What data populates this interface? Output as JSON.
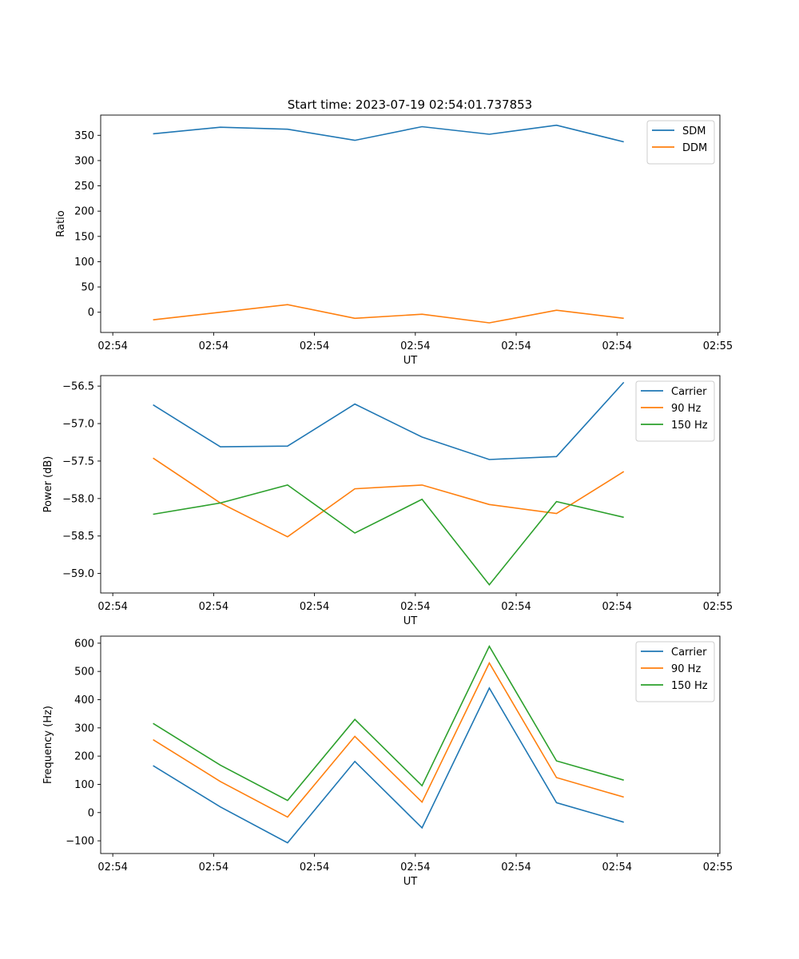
{
  "figure_title": "Start time: 2023-07-19 02:54:01.737853",
  "chart_data": [
    {
      "type": "line",
      "title": "Start time: 2023-07-19 02:54:01.737853",
      "xlabel": "UT",
      "ylabel": "Ratio",
      "x": [
        1,
        2,
        3,
        4,
        5,
        6,
        7,
        8
      ],
      "xlim": [
        0.22,
        9.43
      ],
      "xticks": [
        0.4,
        1.9,
        3.4,
        4.9,
        6.4,
        7.9,
        9.4
      ],
      "xtick_labels": [
        "02:54",
        "02:54",
        "02:54",
        "02:54",
        "02:54",
        "02:54",
        "02:55"
      ],
      "ylim": [
        -40,
        390
      ],
      "yticks": [
        0,
        50,
        100,
        150,
        200,
        250,
        300,
        350
      ],
      "ytick_labels": [
        "0",
        "50",
        "100",
        "150",
        "200",
        "250",
        "300",
        "350"
      ],
      "legend": "top-right",
      "series": [
        {
          "name": "SDM",
          "color": "#1f77b4",
          "values": [
            353,
            366,
            362,
            340,
            367,
            352,
            370,
            337
          ]
        },
        {
          "name": "DDM",
          "color": "#ff7f0e",
          "values": [
            -15,
            0,
            15,
            -12,
            -4,
            -21,
            4,
            -12
          ]
        }
      ]
    },
    {
      "type": "line",
      "title": "",
      "xlabel": "UT",
      "ylabel": "Power (dB)",
      "x": [
        1,
        2,
        3,
        4,
        5,
        6,
        7,
        8
      ],
      "xlim": [
        0.22,
        9.43
      ],
      "xticks": [
        0.4,
        1.9,
        3.4,
        4.9,
        6.4,
        7.9,
        9.4
      ],
      "xtick_labels": [
        "02:54",
        "02:54",
        "02:54",
        "02:54",
        "02:54",
        "02:54",
        "02:55"
      ],
      "ylim": [
        -59.26,
        -56.36
      ],
      "yticks": [
        -59.0,
        -58.5,
        -58.0,
        -57.5,
        -57.0,
        -56.5
      ],
      "ytick_labels": [
        "−59.0",
        "−58.5",
        "−58.0",
        "−57.5",
        "−57.0",
        "−56.5"
      ],
      "legend": "top-right",
      "series": [
        {
          "name": "Carrier",
          "color": "#1f77b4",
          "values": [
            -56.75,
            -57.31,
            -57.3,
            -56.74,
            -57.18,
            -57.48,
            -57.44,
            -56.45
          ]
        },
        {
          "name": "90 Hz",
          "color": "#ff7f0e",
          "values": [
            -57.46,
            -58.06,
            -58.51,
            -57.87,
            -57.82,
            -58.08,
            -58.2,
            -57.64
          ]
        },
        {
          "name": "150 Hz",
          "color": "#2ca02c",
          "values": [
            -58.21,
            -58.06,
            -57.82,
            -58.46,
            -58.01,
            -59.15,
            -58.04,
            -58.25
          ]
        }
      ]
    },
    {
      "type": "line",
      "title": "",
      "xlabel": "UT",
      "ylabel": "Frequency (Hz)",
      "x": [
        1,
        2,
        3,
        4,
        5,
        6,
        7,
        8
      ],
      "xlim": [
        0.22,
        9.43
      ],
      "xticks": [
        0.4,
        1.9,
        3.4,
        4.9,
        6.4,
        7.9,
        9.4
      ],
      "xtick_labels": [
        "02:54",
        "02:54",
        "02:54",
        "02:54",
        "02:54",
        "02:54",
        "02:55"
      ],
      "ylim": [
        -145,
        625
      ],
      "yticks": [
        -100,
        0,
        100,
        200,
        300,
        400,
        500,
        600
      ],
      "ytick_labels": [
        "−100",
        "0",
        "100",
        "200",
        "300",
        "400",
        "500",
        "600"
      ],
      "legend": "top-right",
      "series": [
        {
          "name": "Carrier",
          "color": "#1f77b4",
          "values": [
            166,
            20,
            -107,
            181,
            -54,
            441,
            35,
            -34
          ]
        },
        {
          "name": "90 Hz",
          "color": "#ff7f0e",
          "values": [
            258,
            110,
            -16,
            270,
            37,
            530,
            124,
            55
          ]
        },
        {
          "name": "150 Hz",
          "color": "#2ca02c",
          "values": [
            316,
            168,
            43,
            330,
            95,
            589,
            183,
            115
          ]
        }
      ]
    }
  ]
}
